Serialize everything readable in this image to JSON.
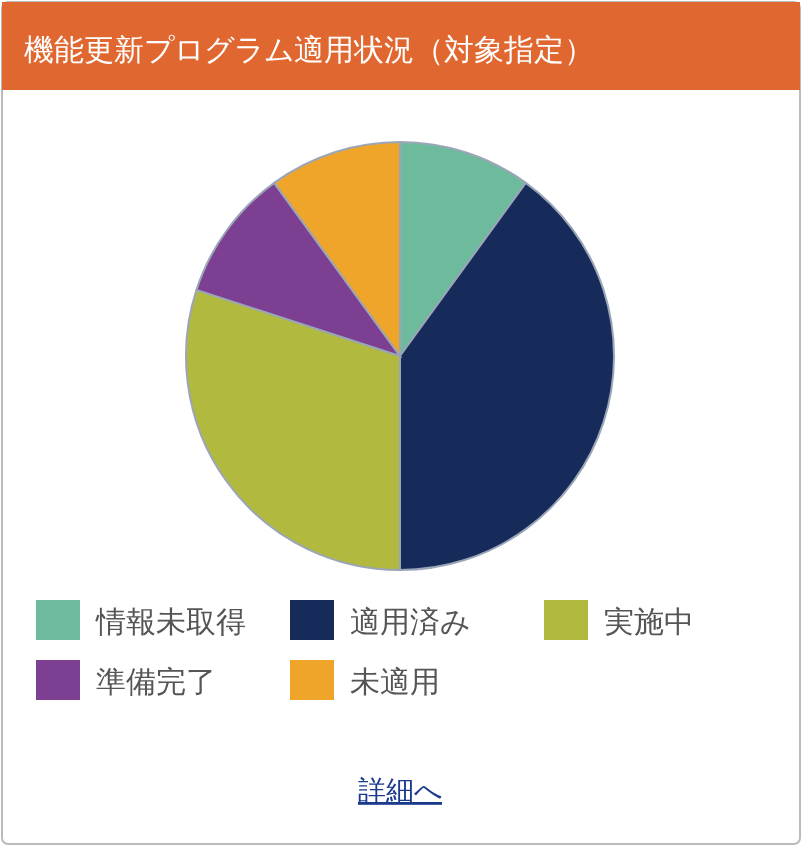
{
  "chart_data": {
    "type": "pie",
    "title": "機能更新プログラム適用状況（対象指定）",
    "categories": [
      "情報未取得",
      "適用済み",
      "実施中",
      "準備完了",
      "未適用"
    ],
    "values": [
      10,
      40,
      30,
      10,
      10
    ],
    "colors": [
      "#6dbb9c",
      "#172b5a",
      "#b1b93f",
      "#7c3f91",
      "#efa42a"
    ],
    "legend": "bottom",
    "annotations": [
      "詳細へ"
    ]
  }
}
